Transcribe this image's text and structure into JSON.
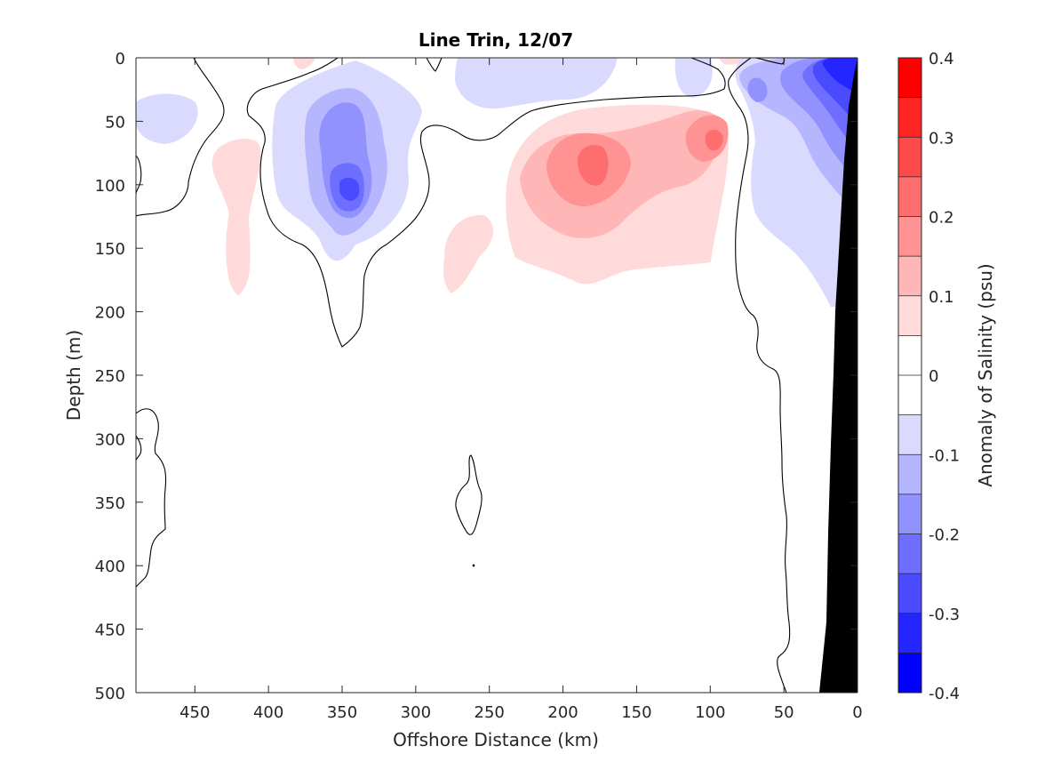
{
  "chart_data": {
    "type": "heatmap",
    "subtype": "filled-contour",
    "title": "Line Trin, 12/07",
    "xlabel": "Offshore Distance (km)",
    "ylabel": "Depth (m)",
    "xlim": [
      490,
      0
    ],
    "x_reversed": true,
    "ylim": [
      0,
      500
    ],
    "y_reversed": true,
    "x_ticks": [
      450,
      400,
      350,
      300,
      250,
      200,
      150,
      100,
      50,
      0
    ],
    "x_tick_labels": [
      "450",
      "400",
      "350",
      "300",
      "250",
      "200",
      "150",
      "100",
      "50",
      "0"
    ],
    "y_ticks": [
      0,
      50,
      100,
      150,
      200,
      250,
      300,
      350,
      400,
      450,
      500
    ],
    "y_tick_labels": [
      "0",
      "50",
      "100",
      "150",
      "200",
      "250",
      "300",
      "350",
      "400",
      "450",
      "500"
    ],
    "grid": false,
    "colorbar": {
      "label": "Anomaly of Salinity (psu)",
      "min": -0.4,
      "max": 0.4,
      "level_step": 0.05,
      "tick_values": [
        0.4,
        0.3,
        0.2,
        0.1,
        0,
        -0.1,
        -0.2,
        -0.3,
        -0.4
      ],
      "tick_labels": [
        "0.4",
        "0.3",
        "0.2",
        "0.1",
        "0",
        "-0.1",
        "-0.2",
        "-0.3",
        "-0.4"
      ],
      "colors_top_to_bottom": [
        "#ff0000",
        "#ff2525",
        "#ff4a4a",
        "#ff6e6e",
        "#ff9292",
        "#ffb6b6",
        "#ffdada",
        "#ffffff",
        "#ffffff",
        "#dadaff",
        "#b6b6ff",
        "#9292ff",
        "#6e6eff",
        "#4a4aff",
        "#2525ff",
        "#0000ff"
      ]
    },
    "features": [
      {
        "kind": "positive",
        "peak_anomaly": 0.2,
        "center_x_km": 178,
        "center_depth_m": 88
      },
      {
        "kind": "positive",
        "peak_anomaly": 0.2,
        "center_x_km": 95,
        "center_depth_m": 70
      },
      {
        "kind": "positive",
        "peak_anomaly": 0.1,
        "center_x_km": 260,
        "center_depth_m": 150
      },
      {
        "kind": "positive",
        "peak_anomaly": 0.1,
        "center_x_km": 420,
        "center_depth_m": 120
      },
      {
        "kind": "negative",
        "peak_anomaly": -0.3,
        "center_x_km": 345,
        "center_depth_m": 105
      },
      {
        "kind": "negative",
        "peak_anomaly": -0.35,
        "center_x_km": 15,
        "center_depth_m": 20
      },
      {
        "kind": "negative",
        "peak_anomaly": -0.1,
        "center_x_km": 470,
        "center_depth_m": 50
      },
      {
        "kind": "negative",
        "peak_anomaly": -0.1,
        "center_x_km": 245,
        "center_depth_m": 25
      }
    ],
    "bottom_mask": "seafloor (black) along right edge"
  }
}
